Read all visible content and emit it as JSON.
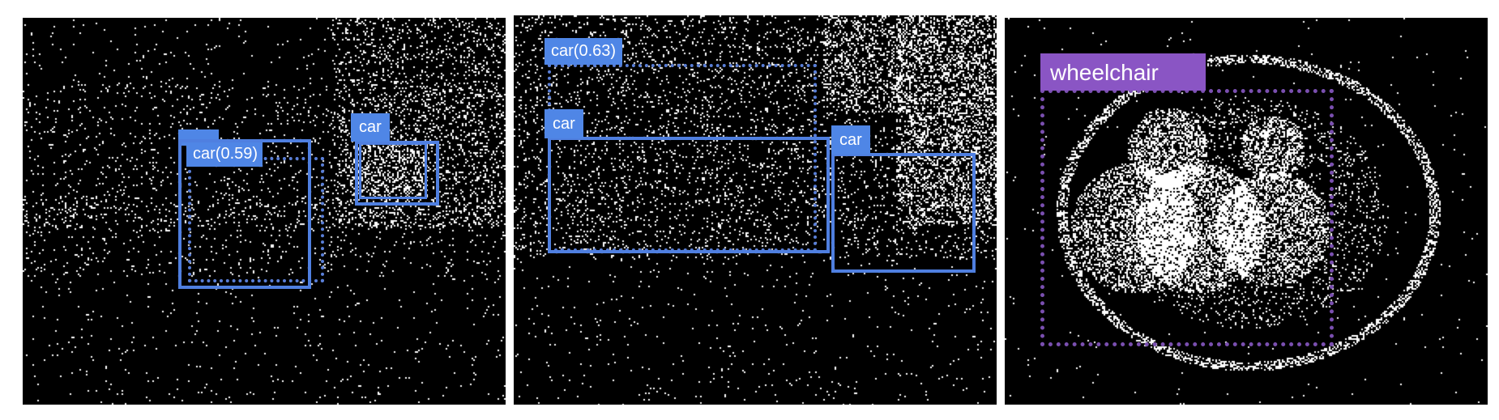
{
  "panels": [
    {
      "detections": [
        {
          "label": "car(0.59)",
          "style": "dotted"
        },
        {
          "label": "car",
          "style": "solid"
        }
      ]
    },
    {
      "detections": [
        {
          "label": "car(0.63)",
          "style": "dotted"
        },
        {
          "label": "car",
          "style": "solid"
        },
        {
          "label": "car",
          "style": "solid"
        }
      ]
    },
    {
      "detections": [
        {
          "label": "wheelchair",
          "style": "dotted"
        }
      ]
    }
  ],
  "colors": {
    "background": "#000000",
    "car_box": "#4f7fe0",
    "car_label": "#4f86e6",
    "wheelchair_box": "#7a4fb0",
    "wheelchair_label": "#8a55c4"
  }
}
